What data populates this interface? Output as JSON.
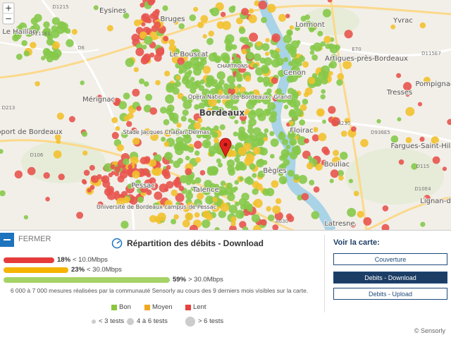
{
  "map": {
    "zoom_in": "+",
    "zoom_out": "−",
    "labels": [
      "Eysines",
      "Bruges",
      "Lormont",
      "Yvrac",
      "Le Haillan",
      "Le Bouscat",
      "Artigues-près-Bordeaux",
      "Mérignac",
      "Cenon",
      "Tresses",
      "Pompignac",
      "Bordeaux",
      "Floirac",
      "Fargues-Saint-Hila",
      "oport de Bordeaux",
      "Bègles",
      "Bouliac",
      "Pessac",
      "Talence",
      "Lignan-d",
      "Latresne",
      "Opéra National de Bordeaux - Grand",
      "Stade Jacques Chaban-Delmas",
      "Université de Bordeaux campus de Pessac",
      "CHARTRONS",
      "D211E1",
      "D6",
      "D1215",
      "D213",
      "D106",
      "A630",
      "E70",
      "N230",
      "D936E5",
      "D115",
      "D10E4",
      "D115E7"
    ]
  },
  "panel": {
    "close_button": "FERMER",
    "title": "Répartition des débits - Download",
    "distribution": {
      "values": [
        18,
        23,
        59
      ],
      "value_labels": [
        "18%",
        "23%",
        "59%"
      ],
      "thresholds": [
        "< 10.0Mbps",
        "< 30.0Mbps",
        "> 30.0Mbps"
      ],
      "colors": [
        "#e63b3b",
        "#f5b400",
        "#a6d366"
      ]
    },
    "note": "6 000 à 7 000 mesures réalisées par la communauté Sensorly au cours des 9 derniers mois visibles sur la carte.",
    "legend": [
      {
        "label": "Bon",
        "color": "#8cc63f"
      },
      {
        "label": "Moyen",
        "color": "#f0a820"
      },
      {
        "label": "Lent",
        "color": "#e8413c"
      }
    ],
    "size_legend": [
      "< 3 tests",
      "4 à 6 tests",
      "> 6 tests"
    ]
  },
  "sidebar": {
    "title": "Voir la carte:",
    "buttons": [
      "Couverture",
      "Debits - Download",
      "Debits - Upload"
    ]
  },
  "copyright": "© Sensorly"
}
